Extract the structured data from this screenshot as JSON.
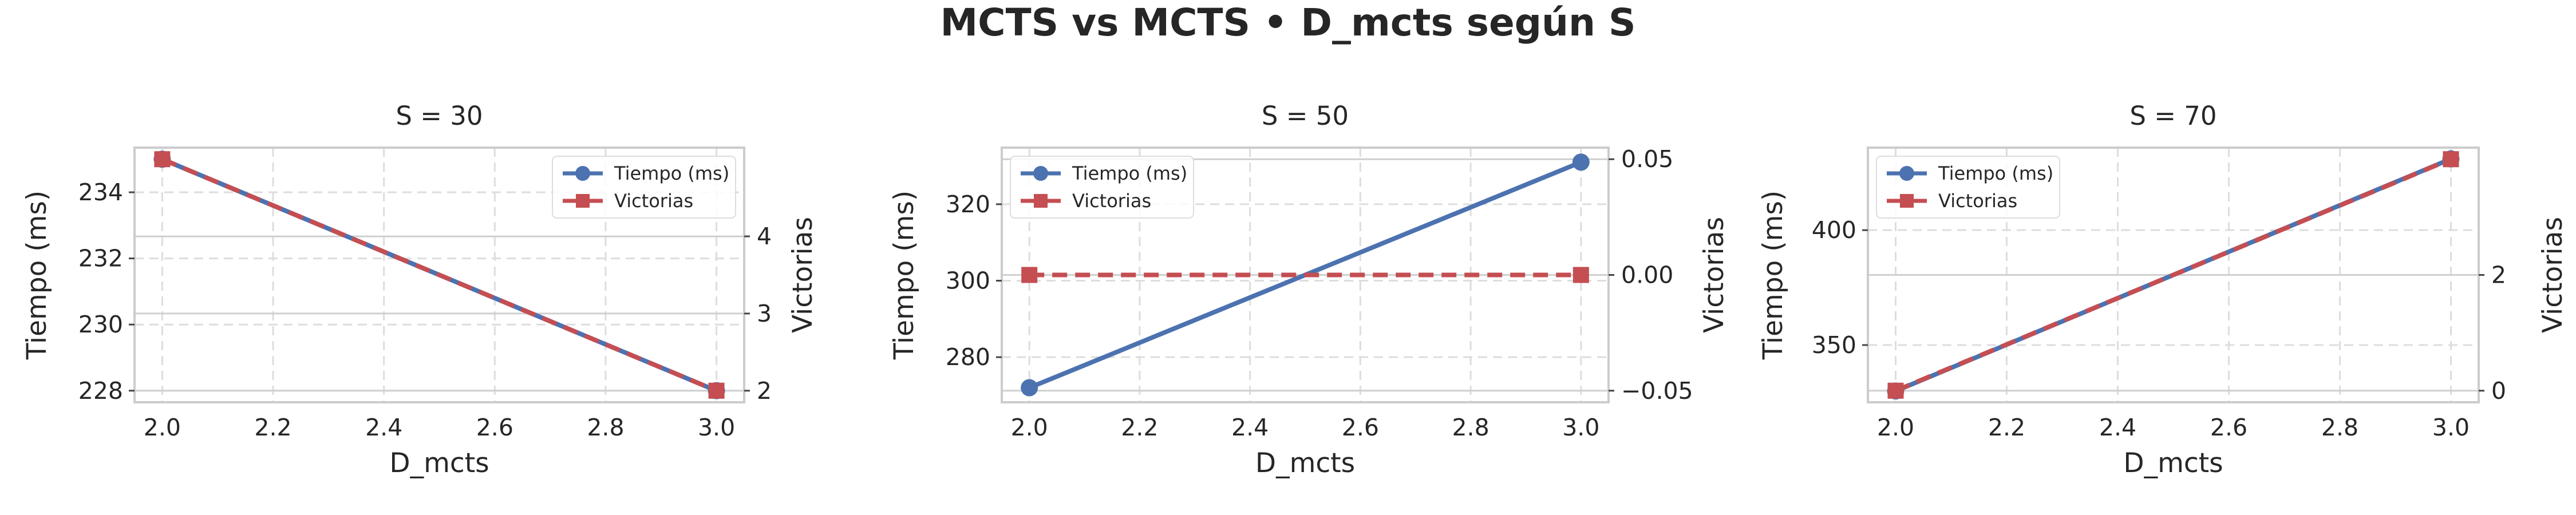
{
  "suptitle": "MCTS vs MCTS • D_mcts según S",
  "colors": {
    "tiempo": "#4c72b0",
    "victorias": "#c44e52",
    "grid": "#dddddd",
    "frame": "#cccccc"
  },
  "chart_data": [
    {
      "type": "line",
      "title": "S = 30",
      "xlabel": "D_mcts",
      "ylabel": "Tiempo (ms)",
      "y2label": "Victorias",
      "x": [
        2.0,
        3.0
      ],
      "xlim": [
        1.95,
        3.05
      ],
      "xticks": [
        "2.0",
        "2.2",
        "2.4",
        "2.6",
        "2.8",
        "3.0"
      ],
      "ylim": [
        227.65,
        235.35
      ],
      "yticks": [
        "228",
        "230",
        "232",
        "234"
      ],
      "y2lim": [
        1.85,
        5.15
      ],
      "y2ticks": [
        "2",
        "3",
        "4"
      ],
      "grid": true,
      "legend_position": "upper right",
      "series": [
        {
          "name": "Tiempo (ms)",
          "axis": "left",
          "marker": "circle",
          "style": "solid",
          "values": [
            235,
            228
          ]
        },
        {
          "name": "Victorias",
          "axis": "right",
          "marker": "square",
          "style": "dashed",
          "values": [
            5,
            2
          ]
        }
      ]
    },
    {
      "type": "line",
      "title": "S = 50",
      "xlabel": "D_mcts",
      "ylabel": "Tiempo (ms)",
      "y2label": "Victorias",
      "x": [
        2.0,
        3.0
      ],
      "xlim": [
        1.95,
        3.05
      ],
      "xticks": [
        "2.0",
        "2.2",
        "2.4",
        "2.6",
        "2.8",
        "3.0"
      ],
      "ylim": [
        268.2,
        334.8
      ],
      "yticks": [
        "280",
        "300",
        "320"
      ],
      "y2lim": [
        -0.055,
        0.055
      ],
      "y2ticks": [
        "−0.05",
        "0.00",
        "0.05"
      ],
      "grid": true,
      "legend_position": "upper left",
      "series": [
        {
          "name": "Tiempo (ms)",
          "axis": "left",
          "marker": "circle",
          "style": "solid",
          "values": [
            272,
            331
          ]
        },
        {
          "name": "Victorias",
          "axis": "right",
          "marker": "square",
          "style": "dashed",
          "values": [
            0,
            0
          ]
        }
      ]
    },
    {
      "type": "line",
      "title": "S = 70",
      "xlabel": "D_mcts",
      "ylabel": "Tiempo (ms)",
      "y2label": "Victorias",
      "x": [
        2.0,
        3.0
      ],
      "xlim": [
        1.95,
        3.05
      ],
      "xticks": [
        "2.0",
        "2.2",
        "2.4",
        "2.6",
        "2.8",
        "3.0"
      ],
      "ylim": [
        325.1,
        435.9
      ],
      "yticks": [
        "350",
        "400"
      ],
      "y2lim": [
        -0.2,
        4.2
      ],
      "y2ticks": [
        "0",
        "2"
      ],
      "grid": true,
      "legend_position": "upper left",
      "series": [
        {
          "name": "Tiempo (ms)",
          "axis": "left",
          "marker": "circle",
          "style": "solid",
          "values": [
            330,
            431
          ]
        },
        {
          "name": "Victorias",
          "axis": "right",
          "marker": "square",
          "style": "dashed",
          "values": [
            0,
            4
          ]
        }
      ]
    }
  ]
}
